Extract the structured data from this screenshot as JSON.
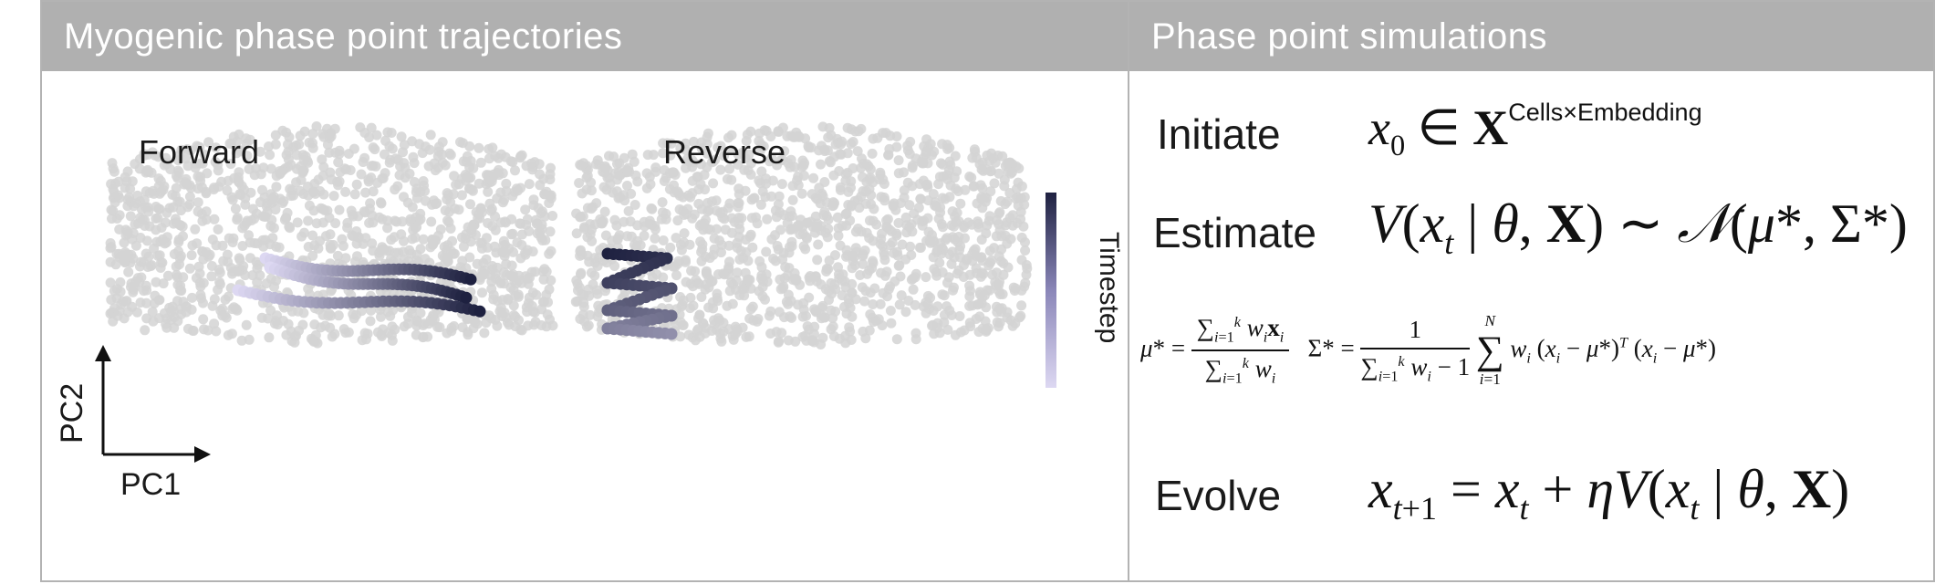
{
  "left_panel": {
    "title": "Myogenic phase point trajectories",
    "forward_label": "Forward",
    "reverse_label": "Reverse",
    "x_axis_label": "PC1",
    "y_axis_label": "PC2",
    "colorbar_label": "Timestep",
    "colors": {
      "background_points": "#d3d3d3",
      "trajectory_start": "#ddd8f2",
      "trajectory_end": "#1e2140",
      "header_bg": "#b0b0b0"
    }
  },
  "right_panel": {
    "title": "Phase point simulations",
    "steps": [
      {
        "label": "Initiate"
      },
      {
        "label": "Estimate"
      },
      {
        "label": "Evolve"
      }
    ]
  }
}
